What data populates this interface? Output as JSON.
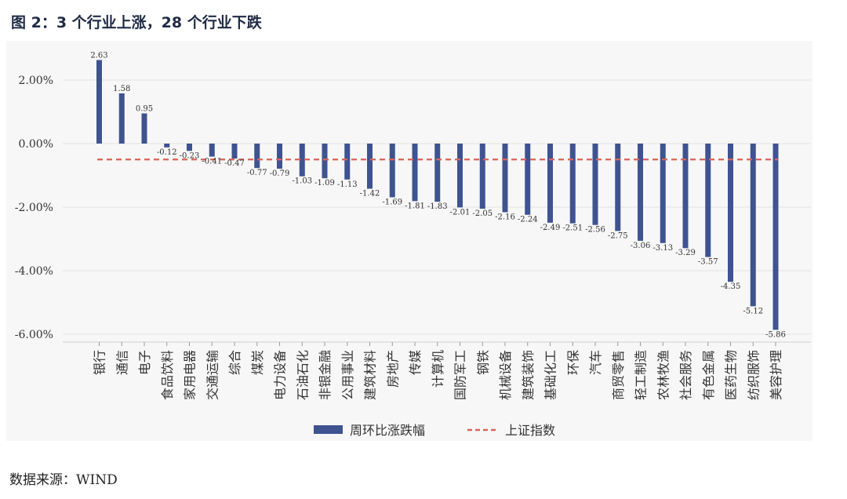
{
  "title": "图 2：3 个行业上涨，28 个行业下跌",
  "source": "数据来源：WIND",
  "colors": {
    "bar": "#3f5391",
    "ref_line": "#d9645a"
  },
  "chart_data": {
    "type": "bar",
    "categories": [
      "银行",
      "通信",
      "电子",
      "食品饮料",
      "家用电器",
      "交通运输",
      "综合",
      "煤炭",
      "电力设备",
      "石油石化",
      "非银金融",
      "公用事业",
      "建筑材料",
      "房地产",
      "传媒",
      "计算机",
      "国防军工",
      "钢铁",
      "机械设备",
      "建筑装饰",
      "基础化工",
      "环保",
      "汽车",
      "商贸零售",
      "轻工制造",
      "农林牧渔",
      "社会服务",
      "有色金属",
      "医药生物",
      "纺织服饰",
      "美容护理"
    ],
    "values": [
      2.63,
      1.58,
      0.95,
      -0.12,
      -0.23,
      -0.41,
      -0.47,
      -0.77,
      -0.79,
      -1.03,
      -1.09,
      -1.13,
      -1.42,
      -1.69,
      -1.81,
      -1.83,
      -2.01,
      -2.05,
      -2.16,
      -2.24,
      -2.49,
      -2.51,
      -2.56,
      -2.75,
      -3.06,
      -3.13,
      -3.29,
      -3.57,
      -4.35,
      -5.12,
      -5.86
    ],
    "value_labels": [
      "2.63",
      "1.58",
      "0.95",
      "-0.12",
      "-0.23",
      "-0.41",
      "-0.47",
      "-0.77",
      "-0.79",
      "-1.03",
      "-1.09",
      "-1.13",
      "-1.42",
      "-1.69",
      "-1.81",
      "-1.83",
      "-2.01",
      "-2.05",
      "-2.16",
      "-2.24",
      "-2.49",
      "-2.51",
      "-2.56",
      "-2.75",
      "-3.06",
      "-3.13",
      "-3.29",
      "-3.57",
      "-4.35",
      "-5.12",
      "-5.86"
    ],
    "series_name": "周环比涨跌幅",
    "reference_line": {
      "name": "上证指数",
      "value": -0.5
    },
    "yticks": [
      2,
      0,
      -2,
      -4,
      -6
    ],
    "ytick_labels": [
      "2.00%",
      "0.00%",
      "-2.00%",
      "-4.00%",
      "-6.00%"
    ],
    "ylim": [
      -6.3,
      3.0
    ],
    "grid": true,
    "legend_position": "bottom"
  }
}
